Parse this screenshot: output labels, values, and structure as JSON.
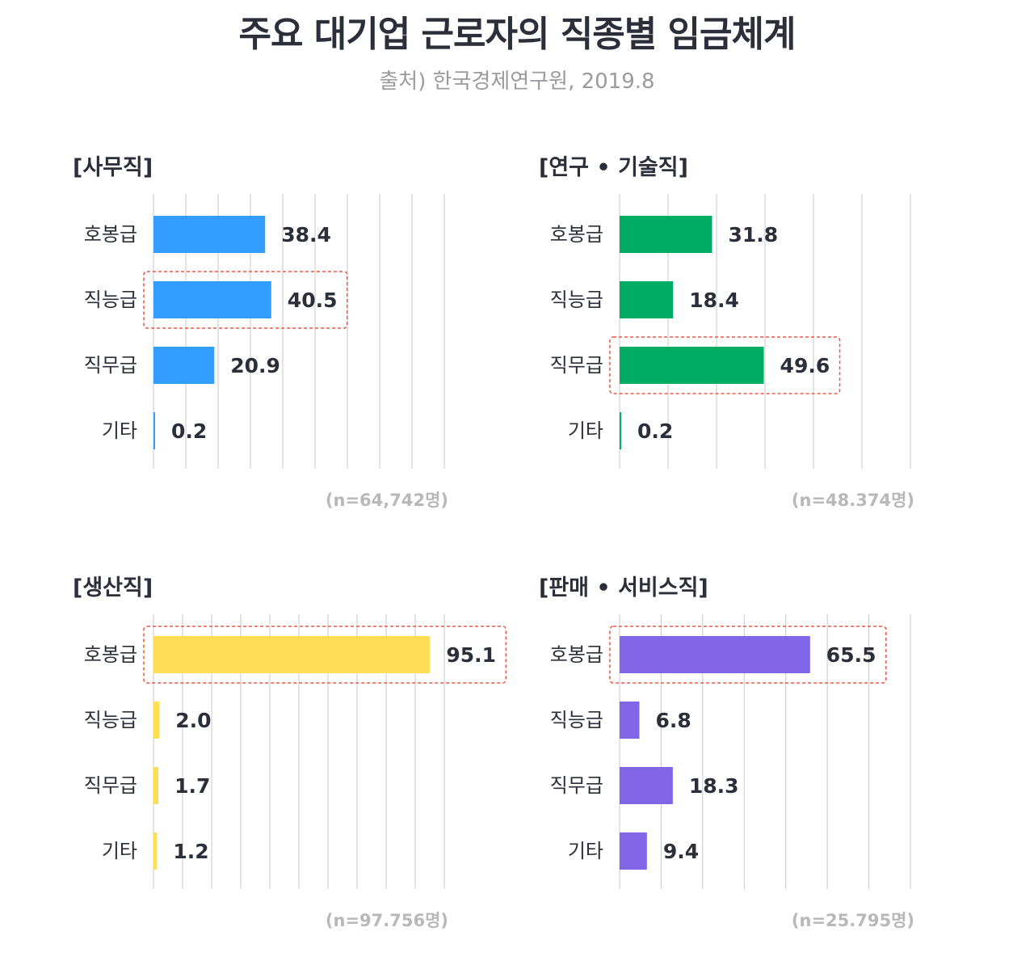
{
  "title": "주요 대기업 근로자의 직종별 임금체계",
  "source": "출처) 한국경제연구원, 2019.8",
  "chart_data": [
    {
      "type": "bar",
      "title": "[사무직]",
      "categories": [
        "호봉급",
        "직능급",
        "직무급",
        "기타"
      ],
      "values": [
        38.4,
        40.5,
        20.9,
        0.2
      ],
      "value_labels": [
        "38.4",
        "40.5",
        "20.9",
        "0.2"
      ],
      "highlight_index": 1,
      "color": "#339cff",
      "note": "(n=64,742명)",
      "grid": true
    },
    {
      "type": "bar",
      "title": "[연구 • 기술직]",
      "categories": [
        "호봉급",
        "직능급",
        "직무급",
        "기타"
      ],
      "values": [
        31.8,
        18.4,
        49.6,
        0.2
      ],
      "value_labels": [
        "31.8",
        "18.4",
        "49.6",
        "0.2"
      ],
      "highlight_index": 2,
      "color": "#00ad62",
      "note": "(n=48.374명)",
      "grid": true
    },
    {
      "type": "bar",
      "title": "[생산직]",
      "categories": [
        "호봉급",
        "직능급",
        "직무급",
        "기타"
      ],
      "values": [
        95.1,
        2.0,
        1.7,
        1.2
      ],
      "value_labels": [
        "95.1",
        "2.0",
        "1.7",
        "1.2"
      ],
      "highlight_index": 0,
      "color": "#ffdd57",
      "note": "(n=97.756명)",
      "grid": true
    },
    {
      "type": "bar",
      "title": "[판매 • 서비스직]",
      "categories": [
        "호봉급",
        "직능급",
        "직무급",
        "기타"
      ],
      "values": [
        65.5,
        6.8,
        18.3,
        9.4
      ],
      "value_labels": [
        "65.5",
        "6.8",
        "18.3",
        "9.4"
      ],
      "highlight_index": 0,
      "color": "#8066e6",
      "note": "(n=25.795명)",
      "grid": true
    }
  ],
  "colors": {
    "highlight_border": "#ee5544",
    "grid": "#c8c8c8",
    "text": "#2b2f3a"
  }
}
